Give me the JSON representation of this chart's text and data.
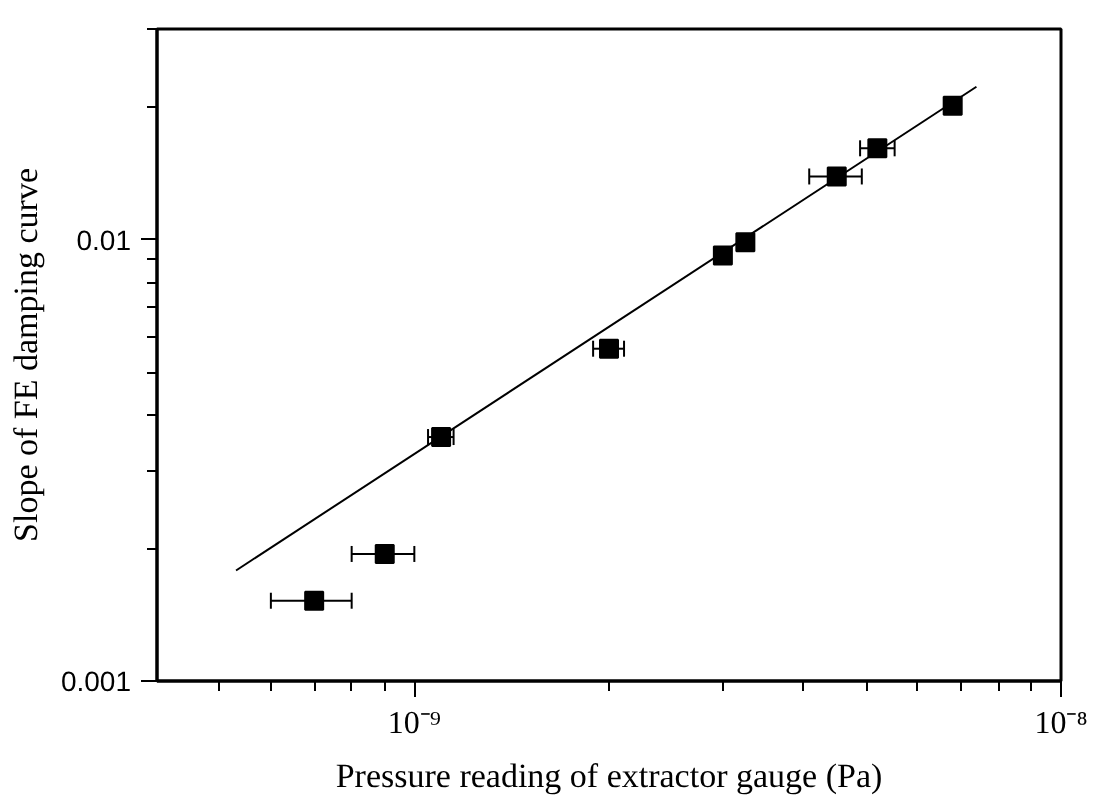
{
  "chart_data": {
    "type": "scatter",
    "xlabel": "Pressure reading of extractor gauge (Pa)",
    "ylabel": "Slope of FE damping curve",
    "log": "xy",
    "grid": false,
    "marker": "square",
    "xlim": [
      4e-10,
      1e-08
    ],
    "ylim": [
      0.001,
      0.03
    ],
    "xticks": [
      {
        "value": 5e-10,
        "label": null
      },
      {
        "value": 6e-10,
        "label": null
      },
      {
        "value": 7e-10,
        "label": null
      },
      {
        "value": 8e-10,
        "label": null
      },
      {
        "value": 9e-10,
        "label": null
      },
      {
        "value": 1e-09,
        "label": "10⁻⁹"
      },
      {
        "value": 2e-09,
        "label": null
      },
      {
        "value": 3e-09,
        "label": null
      },
      {
        "value": 4e-09,
        "label": null
      },
      {
        "value": 5e-09,
        "label": null
      },
      {
        "value": 6e-09,
        "label": null
      },
      {
        "value": 7e-09,
        "label": null
      },
      {
        "value": 8e-09,
        "label": null
      },
      {
        "value": 9e-09,
        "label": null
      },
      {
        "value": 1e-08,
        "label": "10⁻⁸"
      }
    ],
    "yticks": [
      0.001,
      {
        "value": 0.002,
        "label": null
      },
      {
        "value": 0.003,
        "label": null
      },
      {
        "value": 0.004,
        "label": null
      },
      {
        "value": 0.005,
        "label": null
      },
      {
        "value": 0.006,
        "label": null
      },
      {
        "value": 0.007,
        "label": null
      },
      {
        "value": 0.008,
        "label": null
      },
      {
        "value": 0.009,
        "label": null
      },
      0.01,
      {
        "value": 0.02,
        "label": null
      },
      {
        "value": 0.03,
        "label": null
      }
    ],
    "series": [
      {
        "color": "#000000",
        "x": [
          7e-10,
          9e-10,
          1.1e-09,
          2e-09,
          3e-09,
          3.25e-09,
          4.5e-09,
          5.2e-09,
          6.8e-09
        ],
        "values": [
          0.00152,
          0.00194,
          0.00357,
          0.00566,
          0.0092,
          0.00986,
          0.0139,
          0.0161,
          0.0201
        ],
        "xerrors": [
          [
            6e-10,
            8e-10
          ],
          [
            8e-10,
            1e-09
          ],
          [
            1.05e-09,
            1.15e-09
          ],
          [
            1.89e-09,
            2.11e-09
          ],
          null,
          null,
          [
            4.08e-09,
            4.92e-09
          ],
          [
            4.89e-09,
            5.53e-09
          ],
          null
        ]
      },
      {
        "type": "line",
        "color": "#000000",
        "x": [
          5.3e-10,
          7.4e-09
        ],
        "values": [
          0.00178,
          0.0222
        ],
        "marker": "none",
        "line_style": "solid"
      }
    ]
  }
}
